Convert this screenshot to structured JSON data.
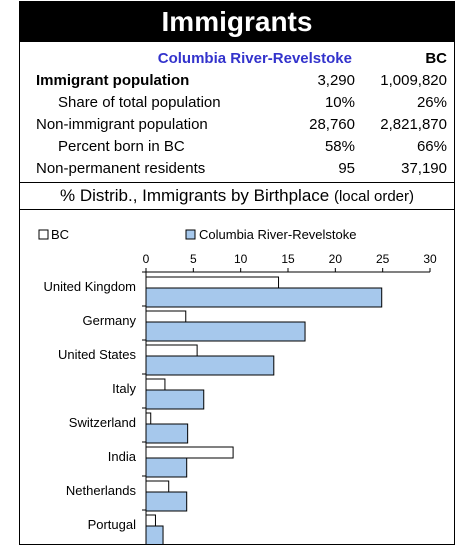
{
  "title": "Immigrants",
  "stats": {
    "col1_header": "Columbia River-Revelstoke",
    "col2_header": "BC",
    "rows": [
      {
        "label": "Immigrant population",
        "v1": "3,290",
        "v2": "1,009,820",
        "bold": true,
        "indent": false
      },
      {
        "label": "Share of total population",
        "v1": "10%",
        "v2": "26%",
        "bold": false,
        "indent": true
      },
      {
        "label": "Non-immigrant population",
        "v1": "28,760",
        "v2": "2,821,870",
        "bold": false,
        "indent": false
      },
      {
        "label": "Percent born in BC",
        "v1": "58%",
        "v2": "66%",
        "bold": false,
        "indent": true
      },
      {
        "label": "Non-permanent residents",
        "v1": "95",
        "v2": "37,190",
        "bold": false,
        "indent": false
      }
    ]
  },
  "subtitle": {
    "main": "% Distrib., Immigrants by Birthplace",
    "note": "(local order)"
  },
  "colors": {
    "local_fill": "#a6c8ec",
    "bc_fill": "#ffffff",
    "header_bg": "#000000",
    "header_accent": "#3333cc"
  },
  "chart_data": {
    "type": "bar",
    "orientation": "horizontal",
    "categories": [
      "United Kingdom",
      "Germany",
      "United States",
      "Italy",
      "Switzerland",
      "India",
      "Netherlands",
      "Portugal"
    ],
    "series": [
      {
        "name": "BC",
        "values": [
          14.0,
          4.2,
          5.4,
          2.0,
          0.5,
          9.2,
          2.4,
          1.0
        ]
      },
      {
        "name": "Columbia River-Revelstoke",
        "values": [
          24.9,
          16.8,
          13.5,
          6.1,
          4.4,
          4.3,
          4.3,
          1.8
        ]
      }
    ],
    "xlim": [
      0,
      30
    ],
    "xticks": [
      "0",
      "5",
      "10",
      "15",
      "20",
      "25",
      "30"
    ],
    "legend": "top",
    "grid": false
  }
}
